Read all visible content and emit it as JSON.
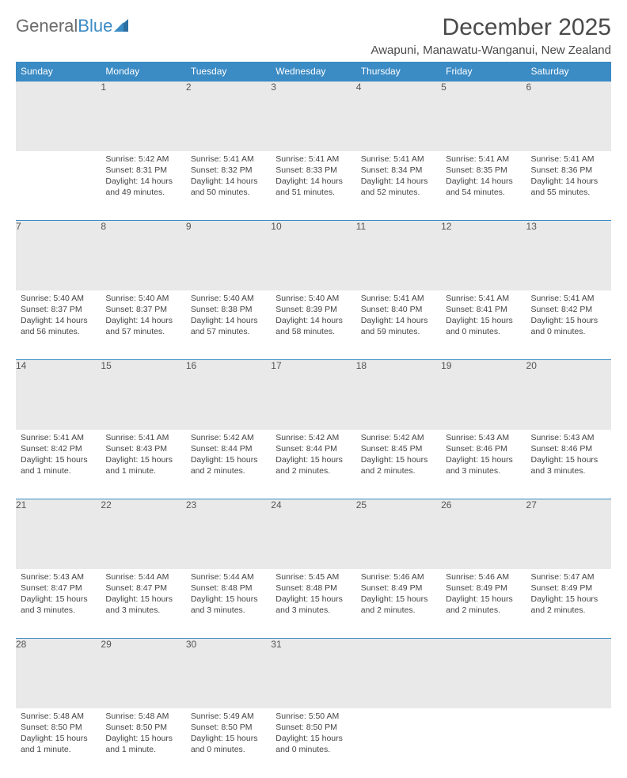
{
  "logo": {
    "part1": "General",
    "part2": "Blue"
  },
  "title": "December 2025",
  "subtitle": "Awapuni, Manawatu-Wanganui, New Zealand",
  "colors": {
    "header_bg": "#3b8bc4",
    "header_text": "#ffffff",
    "daynum_bg": "#e9e9e9",
    "border": "#3b8bc4",
    "body_text": "#444444",
    "title_text": "#4a4a4a",
    "logo_gray": "#6b6b6b"
  },
  "day_headers": [
    "Sunday",
    "Monday",
    "Tuesday",
    "Wednesday",
    "Thursday",
    "Friday",
    "Saturday"
  ],
  "weeks": [
    [
      null,
      {
        "n": "1",
        "sr": "5:42 AM",
        "ss": "8:31 PM",
        "dl": "14 hours and 49 minutes."
      },
      {
        "n": "2",
        "sr": "5:41 AM",
        "ss": "8:32 PM",
        "dl": "14 hours and 50 minutes."
      },
      {
        "n": "3",
        "sr": "5:41 AM",
        "ss": "8:33 PM",
        "dl": "14 hours and 51 minutes."
      },
      {
        "n": "4",
        "sr": "5:41 AM",
        "ss": "8:34 PM",
        "dl": "14 hours and 52 minutes."
      },
      {
        "n": "5",
        "sr": "5:41 AM",
        "ss": "8:35 PM",
        "dl": "14 hours and 54 minutes."
      },
      {
        "n": "6",
        "sr": "5:41 AM",
        "ss": "8:36 PM",
        "dl": "14 hours and 55 minutes."
      }
    ],
    [
      {
        "n": "7",
        "sr": "5:40 AM",
        "ss": "8:37 PM",
        "dl": "14 hours and 56 minutes."
      },
      {
        "n": "8",
        "sr": "5:40 AM",
        "ss": "8:37 PM",
        "dl": "14 hours and 57 minutes."
      },
      {
        "n": "9",
        "sr": "5:40 AM",
        "ss": "8:38 PM",
        "dl": "14 hours and 57 minutes."
      },
      {
        "n": "10",
        "sr": "5:40 AM",
        "ss": "8:39 PM",
        "dl": "14 hours and 58 minutes."
      },
      {
        "n": "11",
        "sr": "5:41 AM",
        "ss": "8:40 PM",
        "dl": "14 hours and 59 minutes."
      },
      {
        "n": "12",
        "sr": "5:41 AM",
        "ss": "8:41 PM",
        "dl": "15 hours and 0 minutes."
      },
      {
        "n": "13",
        "sr": "5:41 AM",
        "ss": "8:42 PM",
        "dl": "15 hours and 0 minutes."
      }
    ],
    [
      {
        "n": "14",
        "sr": "5:41 AM",
        "ss": "8:42 PM",
        "dl": "15 hours and 1 minute."
      },
      {
        "n": "15",
        "sr": "5:41 AM",
        "ss": "8:43 PM",
        "dl": "15 hours and 1 minute."
      },
      {
        "n": "16",
        "sr": "5:42 AM",
        "ss": "8:44 PM",
        "dl": "15 hours and 2 minutes."
      },
      {
        "n": "17",
        "sr": "5:42 AM",
        "ss": "8:44 PM",
        "dl": "15 hours and 2 minutes."
      },
      {
        "n": "18",
        "sr": "5:42 AM",
        "ss": "8:45 PM",
        "dl": "15 hours and 2 minutes."
      },
      {
        "n": "19",
        "sr": "5:43 AM",
        "ss": "8:46 PM",
        "dl": "15 hours and 3 minutes."
      },
      {
        "n": "20",
        "sr": "5:43 AM",
        "ss": "8:46 PM",
        "dl": "15 hours and 3 minutes."
      }
    ],
    [
      {
        "n": "21",
        "sr": "5:43 AM",
        "ss": "8:47 PM",
        "dl": "15 hours and 3 minutes."
      },
      {
        "n": "22",
        "sr": "5:44 AM",
        "ss": "8:47 PM",
        "dl": "15 hours and 3 minutes."
      },
      {
        "n": "23",
        "sr": "5:44 AM",
        "ss": "8:48 PM",
        "dl": "15 hours and 3 minutes."
      },
      {
        "n": "24",
        "sr": "5:45 AM",
        "ss": "8:48 PM",
        "dl": "15 hours and 3 minutes."
      },
      {
        "n": "25",
        "sr": "5:46 AM",
        "ss": "8:49 PM",
        "dl": "15 hours and 2 minutes."
      },
      {
        "n": "26",
        "sr": "5:46 AM",
        "ss": "8:49 PM",
        "dl": "15 hours and 2 minutes."
      },
      {
        "n": "27",
        "sr": "5:47 AM",
        "ss": "8:49 PM",
        "dl": "15 hours and 2 minutes."
      }
    ],
    [
      {
        "n": "28",
        "sr": "5:48 AM",
        "ss": "8:50 PM",
        "dl": "15 hours and 1 minute."
      },
      {
        "n": "29",
        "sr": "5:48 AM",
        "ss": "8:50 PM",
        "dl": "15 hours and 1 minute."
      },
      {
        "n": "30",
        "sr": "5:49 AM",
        "ss": "8:50 PM",
        "dl": "15 hours and 0 minutes."
      },
      {
        "n": "31",
        "sr": "5:50 AM",
        "ss": "8:50 PM",
        "dl": "15 hours and 0 minutes."
      },
      null,
      null,
      null
    ]
  ],
  "labels": {
    "sunrise": "Sunrise:",
    "sunset": "Sunset:",
    "daylight": "Daylight:"
  }
}
